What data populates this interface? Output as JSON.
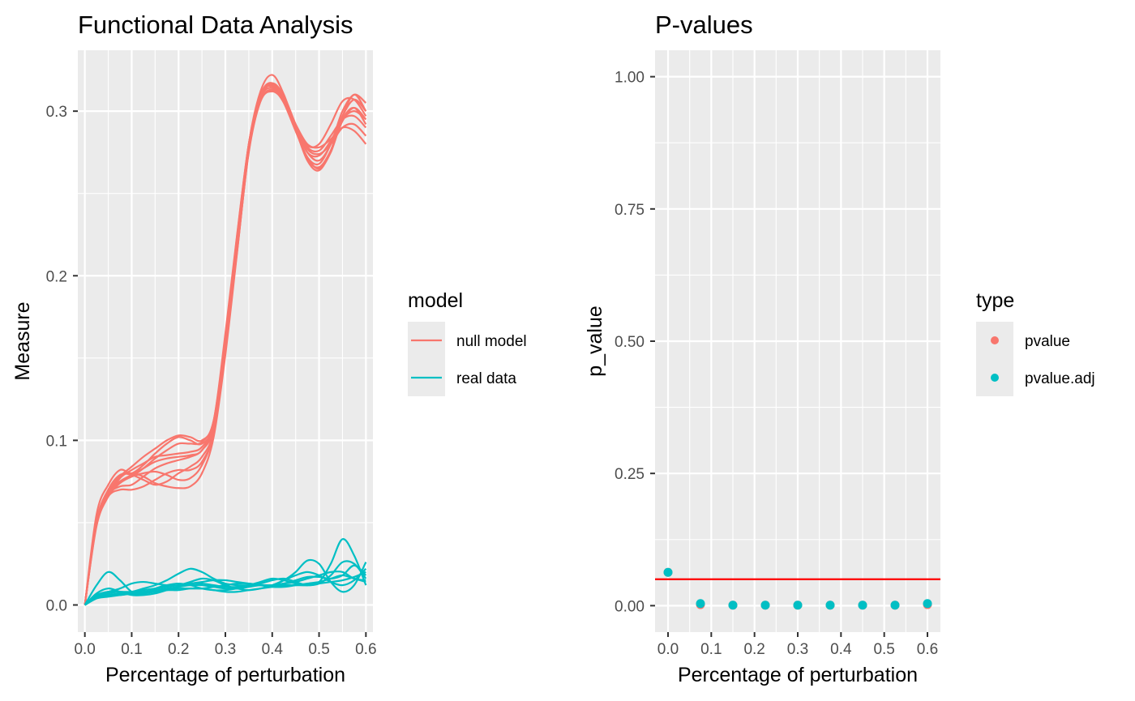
{
  "left_panel": {
    "title": "Functional Data Analysis",
    "xlabel": "Percentage of perturbation",
    "ylabel": "Measure",
    "legend_title": "model"
  },
  "right_panel": {
    "title": "P-values",
    "xlabel": "Percentage of perturbation",
    "ylabel": "p_value",
    "legend_title": "type"
  },
  "chart_data": [
    {
      "type": "line",
      "title": "Functional Data Analysis",
      "xlabel": "Percentage of perturbation",
      "ylabel": "Measure",
      "xlim": [
        -0.015,
        0.615
      ],
      "ylim": [
        -0.0165,
        0.337
      ],
      "x_ticks": [
        0.0,
        0.1,
        0.2,
        0.3,
        0.4,
        0.5,
        0.6
      ],
      "x_tick_labels": [
        "0.0",
        "0.1",
        "0.2",
        "0.3",
        "0.4",
        "0.5",
        "0.6"
      ],
      "y_ticks": [
        0.0,
        0.1,
        0.2,
        0.3
      ],
      "y_tick_labels": [
        "0.0",
        "0.1",
        "0.2",
        "0.3"
      ],
      "grid": true,
      "legend": {
        "title": "model",
        "position": "right",
        "entries": [
          {
            "label": "null model",
            "color": "#F8766D"
          },
          {
            "label": "real data",
            "color": "#00BFC4"
          }
        ]
      },
      "x": [
        0.0,
        0.025,
        0.05,
        0.075,
        0.1,
        0.125,
        0.15,
        0.175,
        0.2,
        0.225,
        0.25,
        0.275,
        0.3,
        0.325,
        0.35,
        0.375,
        0.4,
        0.425,
        0.45,
        0.475,
        0.5,
        0.525,
        0.55,
        0.575,
        0.6
      ],
      "series": [
        {
          "group": "null model",
          "color": "#F8766D",
          "values": [
            0.0,
            0.055,
            0.073,
            0.082,
            0.08,
            0.085,
            0.092,
            0.098,
            0.102,
            0.1,
            0.098,
            0.11,
            0.16,
            0.22,
            0.28,
            0.312,
            0.322,
            0.31,
            0.29,
            0.275,
            0.27,
            0.28,
            0.3,
            0.31,
            0.305
          ]
        },
        {
          "group": "null model",
          "color": "#F8766D",
          "values": [
            0.0,
            0.05,
            0.068,
            0.078,
            0.084,
            0.09,
            0.095,
            0.1,
            0.103,
            0.102,
            0.1,
            0.112,
            0.165,
            0.225,
            0.28,
            0.31,
            0.317,
            0.305,
            0.288,
            0.272,
            0.268,
            0.28,
            0.297,
            0.307,
            0.3
          ]
        },
        {
          "group": "null model",
          "color": "#F8766D",
          "values": [
            0.0,
            0.05,
            0.068,
            0.075,
            0.078,
            0.083,
            0.089,
            0.094,
            0.098,
            0.098,
            0.099,
            0.112,
            0.162,
            0.224,
            0.28,
            0.31,
            0.315,
            0.307,
            0.29,
            0.275,
            0.273,
            0.282,
            0.295,
            0.3,
            0.295
          ]
        },
        {
          "group": "null model",
          "color": "#F8766D",
          "values": [
            0.0,
            0.048,
            0.066,
            0.077,
            0.082,
            0.086,
            0.09,
            0.091,
            0.092,
            0.093,
            0.096,
            0.11,
            0.16,
            0.22,
            0.278,
            0.308,
            0.314,
            0.306,
            0.29,
            0.278,
            0.276,
            0.285,
            0.295,
            0.297,
            0.29
          ]
        },
        {
          "group": "null model",
          "color": "#F8766D",
          "values": [
            0.0,
            0.05,
            0.067,
            0.072,
            0.073,
            0.078,
            0.083,
            0.086,
            0.088,
            0.09,
            0.094,
            0.108,
            0.158,
            0.218,
            0.276,
            0.306,
            0.312,
            0.306,
            0.292,
            0.28,
            0.278,
            0.283,
            0.29,
            0.288,
            0.28
          ]
        },
        {
          "group": "null model",
          "color": "#F8766D",
          "values": [
            0.0,
            0.049,
            0.066,
            0.074,
            0.078,
            0.08,
            0.081,
            0.079,
            0.076,
            0.077,
            0.085,
            0.105,
            0.155,
            0.215,
            0.275,
            0.306,
            0.313,
            0.305,
            0.288,
            0.272,
            0.265,
            0.275,
            0.295,
            0.302,
            0.292
          ]
        },
        {
          "group": "null model",
          "color": "#F8766D",
          "values": [
            0.0,
            0.05,
            0.066,
            0.07,
            0.07,
            0.072,
            0.076,
            0.08,
            0.082,
            0.082,
            0.087,
            0.105,
            0.155,
            0.215,
            0.276,
            0.308,
            0.316,
            0.308,
            0.289,
            0.27,
            0.264,
            0.276,
            0.297,
            0.31,
            0.3
          ]
        },
        {
          "group": "null model",
          "color": "#F8766D",
          "values": [
            0.0,
            0.05,
            0.068,
            0.078,
            0.08,
            0.078,
            0.074,
            0.072,
            0.071,
            0.072,
            0.08,
            0.102,
            0.152,
            0.214,
            0.276,
            0.309,
            0.317,
            0.309,
            0.29,
            0.271,
            0.266,
            0.276,
            0.294,
            0.302,
            0.295
          ]
        },
        {
          "group": "null model",
          "color": "#F8766D",
          "values": [
            0.0,
            0.051,
            0.07,
            0.079,
            0.079,
            0.076,
            0.073,
            0.075,
            0.08,
            0.084,
            0.09,
            0.106,
            0.156,
            0.218,
            0.278,
            0.309,
            0.316,
            0.309,
            0.292,
            0.277,
            0.274,
            0.28,
            0.29,
            0.292,
            0.285
          ]
        },
        {
          "group": "null model",
          "color": "#F8766D",
          "values": [
            0.0,
            0.05,
            0.067,
            0.075,
            0.079,
            0.083,
            0.087,
            0.089,
            0.09,
            0.091,
            0.094,
            0.11,
            0.16,
            0.22,
            0.279,
            0.309,
            0.316,
            0.306,
            0.29,
            0.279,
            0.28,
            0.292,
            0.306,
            0.307,
            0.297
          ]
        },
        {
          "group": "real data",
          "color": "#00BFC4",
          "values": [
            0.0,
            0.012,
            0.02,
            0.015,
            0.008,
            0.007,
            0.01,
            0.012,
            0.013,
            0.012,
            0.01,
            0.009,
            0.009,
            0.01,
            0.011,
            0.012,
            0.012,
            0.013,
            0.014,
            0.016,
            0.018,
            0.02,
            0.02,
            0.016,
            0.015
          ]
        },
        {
          "group": "real data",
          "color": "#00BFC4",
          "values": [
            0.0,
            0.006,
            0.008,
            0.01,
            0.013,
            0.014,
            0.013,
            0.012,
            0.012,
            0.014,
            0.016,
            0.015,
            0.012,
            0.01,
            0.009,
            0.01,
            0.012,
            0.015,
            0.018,
            0.02,
            0.018,
            0.014,
            0.012,
            0.015,
            0.022
          ]
        },
        {
          "group": "real data",
          "color": "#00BFC4",
          "values": [
            0.0,
            0.004,
            0.006,
            0.007,
            0.008,
            0.01,
            0.012,
            0.015,
            0.019,
            0.022,
            0.02,
            0.016,
            0.013,
            0.012,
            0.012,
            0.012,
            0.012,
            0.015,
            0.02,
            0.027,
            0.025,
            0.014,
            0.008,
            0.012,
            0.026
          ]
        },
        {
          "group": "real data",
          "color": "#00BFC4",
          "values": [
            0.0,
            0.005,
            0.006,
            0.006,
            0.007,
            0.008,
            0.009,
            0.01,
            0.011,
            0.012,
            0.012,
            0.011,
            0.01,
            0.01,
            0.011,
            0.013,
            0.015,
            0.016,
            0.014,
            0.012,
            0.014,
            0.025,
            0.04,
            0.03,
            0.012
          ]
        },
        {
          "group": "real data",
          "color": "#00BFC4",
          "values": [
            0.0,
            0.005,
            0.007,
            0.008,
            0.007,
            0.007,
            0.008,
            0.009,
            0.01,
            0.01,
            0.01,
            0.011,
            0.012,
            0.013,
            0.013,
            0.012,
            0.011,
            0.011,
            0.012,
            0.013,
            0.014,
            0.016,
            0.018,
            0.016,
            0.014
          ]
        },
        {
          "group": "real data",
          "color": "#00BFC4",
          "values": [
            0.0,
            0.006,
            0.008,
            0.008,
            0.008,
            0.009,
            0.01,
            0.011,
            0.012,
            0.013,
            0.014,
            0.015,
            0.015,
            0.014,
            0.013,
            0.012,
            0.012,
            0.013,
            0.015,
            0.017,
            0.017,
            0.016,
            0.018,
            0.024,
            0.018
          ]
        },
        {
          "group": "real data",
          "color": "#00BFC4",
          "values": [
            0.0,
            0.004,
            0.005,
            0.006,
            0.007,
            0.008,
            0.008,
            0.009,
            0.009,
            0.01,
            0.01,
            0.009,
            0.008,
            0.008,
            0.009,
            0.01,
            0.011,
            0.012,
            0.012,
            0.012,
            0.013,
            0.014,
            0.015,
            0.017,
            0.02
          ]
        },
        {
          "group": "real data",
          "color": "#00BFC4",
          "values": [
            0.0,
            0.007,
            0.01,
            0.008,
            0.006,
            0.006,
            0.007,
            0.009,
            0.011,
            0.013,
            0.013,
            0.012,
            0.011,
            0.011,
            0.012,
            0.014,
            0.016,
            0.015,
            0.013,
            0.012,
            0.013,
            0.018,
            0.026,
            0.025,
            0.016
          ]
        }
      ]
    },
    {
      "type": "scatter",
      "title": "P-values",
      "xlabel": "Percentage of perturbation",
      "ylabel": "p_value",
      "xlim": [
        -0.03,
        0.63
      ],
      "ylim": [
        -0.05,
        1.05
      ],
      "x_ticks": [
        0.0,
        0.1,
        0.2,
        0.3,
        0.4,
        0.5,
        0.6
      ],
      "x_tick_labels": [
        "0.0",
        "0.1",
        "0.2",
        "0.3",
        "0.4",
        "0.5",
        "0.6"
      ],
      "y_ticks": [
        0.0,
        0.25,
        0.5,
        0.75,
        1.0
      ],
      "y_tick_labels": [
        "0.00",
        "0.25",
        "0.50",
        "0.75",
        "1.00"
      ],
      "grid": true,
      "hline": {
        "y": 0.05,
        "color": "#FF0000"
      },
      "legend": {
        "title": "type",
        "position": "right",
        "entries": [
          {
            "label": "pvalue",
            "color": "#F8766D"
          },
          {
            "label": "pvalue.adj",
            "color": "#00BFC4"
          }
        ]
      },
      "x": [
        0.0,
        0.075,
        0.15,
        0.225,
        0.3,
        0.375,
        0.45,
        0.525,
        0.6
      ],
      "series": [
        {
          "name": "pvalue",
          "color": "#F8766D",
          "values": [
            0.063,
            0.002,
            0.001,
            0.001,
            0.001,
            0.001,
            0.001,
            0.001,
            0.002
          ]
        },
        {
          "name": "pvalue.adj",
          "color": "#00BFC4",
          "values": [
            0.063,
            0.004,
            0.001,
            0.001,
            0.001,
            0.001,
            0.001,
            0.001,
            0.004
          ]
        }
      ]
    }
  ]
}
